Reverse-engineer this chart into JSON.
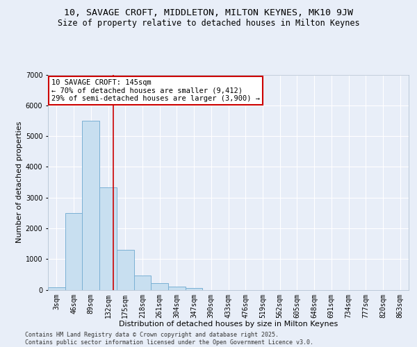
{
  "title_line1": "10, SAVAGE CROFT, MIDDLETON, MILTON KEYNES, MK10 9JW",
  "title_line2": "Size of property relative to detached houses in Milton Keynes",
  "xlabel": "Distribution of detached houses by size in Milton Keynes",
  "ylabel": "Number of detached properties",
  "categories": [
    "3sqm",
    "46sqm",
    "89sqm",
    "132sqm",
    "175sqm",
    "218sqm",
    "261sqm",
    "304sqm",
    "347sqm",
    "390sqm",
    "433sqm",
    "476sqm",
    "519sqm",
    "562sqm",
    "605sqm",
    "648sqm",
    "691sqm",
    "734sqm",
    "777sqm",
    "820sqm",
    "863sqm"
  ],
  "values": [
    80,
    2490,
    5500,
    3330,
    1290,
    460,
    225,
    95,
    55,
    0,
    0,
    0,
    0,
    0,
    0,
    0,
    0,
    0,
    0,
    0,
    0
  ],
  "bar_color": "#c8dff0",
  "bar_edge_color": "#7ab0d4",
  "vline_color": "#cc0000",
  "annotation_title": "10 SAVAGE CROFT: 145sqm",
  "annotation_line1": "← 70% of detached houses are smaller (9,412)",
  "annotation_line2": "29% of semi-detached houses are larger (3,900) →",
  "annotation_box_color": "#ffffff",
  "annotation_box_edge": "#cc0000",
  "ylim": [
    0,
    7000
  ],
  "yticks": [
    0,
    1000,
    2000,
    3000,
    4000,
    5000,
    6000,
    7000
  ],
  "background_color": "#e8eef8",
  "grid_color": "#ffffff",
  "footer_line1": "Contains HM Land Registry data © Crown copyright and database right 2025.",
  "footer_line2": "Contains public sector information licensed under the Open Government Licence v3.0.",
  "title_fontsize": 9.5,
  "subtitle_fontsize": 8.5,
  "axis_label_fontsize": 8,
  "tick_fontsize": 7,
  "annotation_fontsize": 7.5,
  "footer_fontsize": 6
}
